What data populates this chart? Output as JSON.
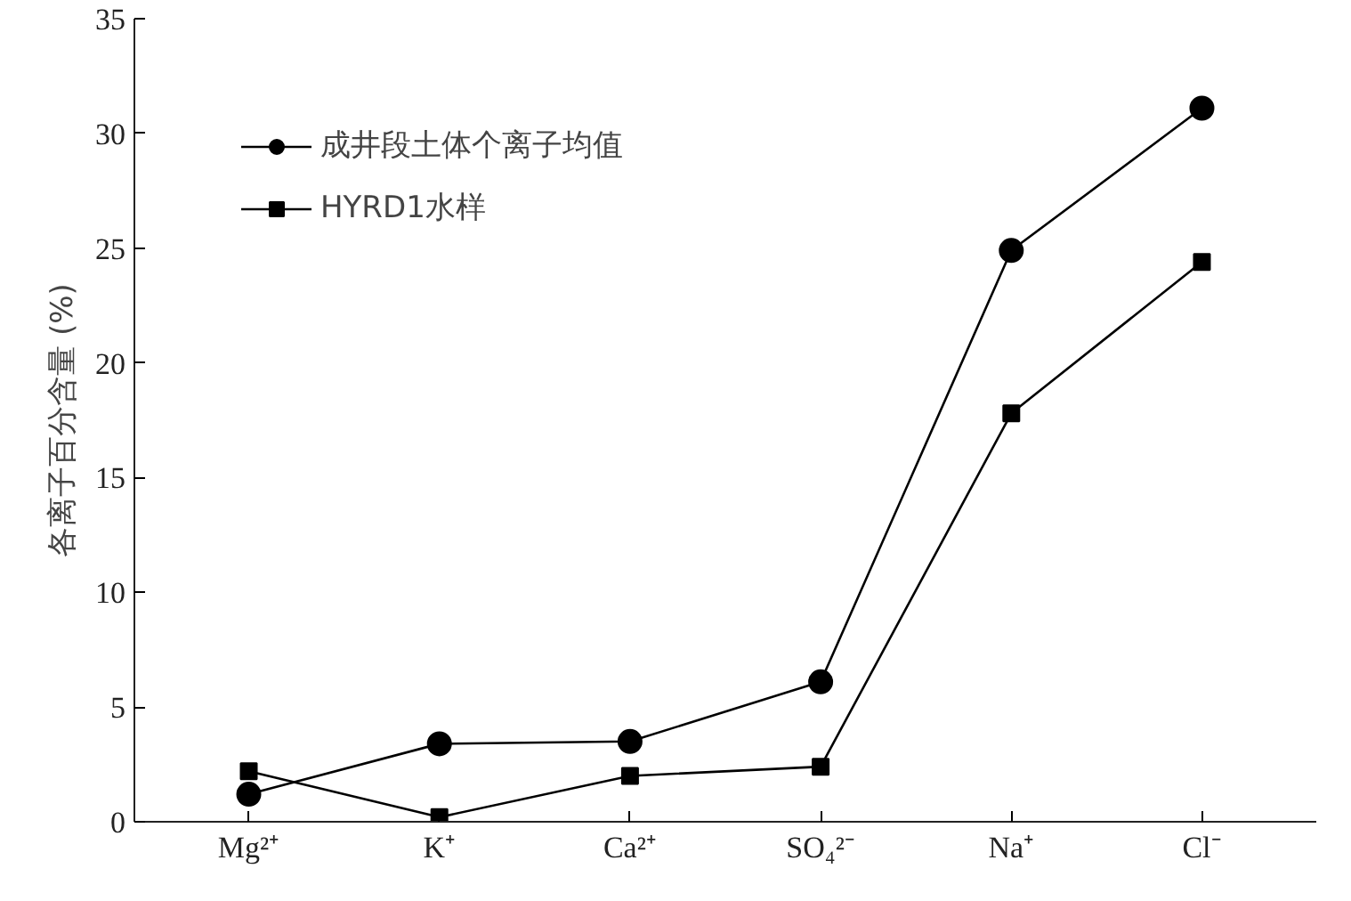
{
  "chart_data": {
    "type": "line",
    "ylabel": "各离子百分含量 (%)",
    "categories": [
      "Mg²⁺",
      "K⁺",
      "Ca²⁺",
      "SO₄²⁻",
      "Na⁺",
      "Cl⁻"
    ],
    "series": [
      {
        "name": "成井段土体个离子均值",
        "color": "#000000",
        "marker": "circle",
        "values": [
          1.2,
          3.4,
          3.5,
          6.1,
          24.9,
          31.1
        ]
      },
      {
        "name": "HYRD1水样",
        "color": "#000000",
        "marker": "square",
        "values": [
          2.2,
          0.2,
          2.0,
          2.4,
          17.8,
          24.4
        ]
      }
    ],
    "ylim": [
      0,
      35
    ],
    "yticks": [
      0,
      5,
      10,
      15,
      20,
      25,
      30,
      35
    ],
    "grid": false,
    "legend": "top left",
    "line_style": "solid"
  }
}
